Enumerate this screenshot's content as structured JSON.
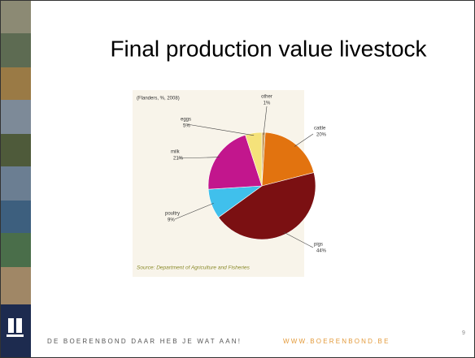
{
  "slide": {
    "title": "Final production value livestock",
    "footer": "DE BOERENBOND DAAR HEB JE WAT AAN!",
    "url": "WWW.BOERENBOND.BE",
    "page_number": "9"
  },
  "chart_data": {
    "type": "pie",
    "title": "(Flanders, %, 2008)",
    "source": "Source: Department of Agriculture and Fisheries",
    "categories": [
      "other",
      "cattle",
      "pigs",
      "poultry",
      "milk",
      "eggs"
    ],
    "values": [
      1,
      20,
      44,
      9,
      21,
      5
    ],
    "value_labels": [
      "1%",
      "20%",
      "44%",
      "9%",
      "21%",
      "5%"
    ],
    "colors": [
      "#c9a063",
      "#e2730f",
      "#7b1012",
      "#40c0ec",
      "#c2168d",
      "#f5e27a"
    ]
  }
}
